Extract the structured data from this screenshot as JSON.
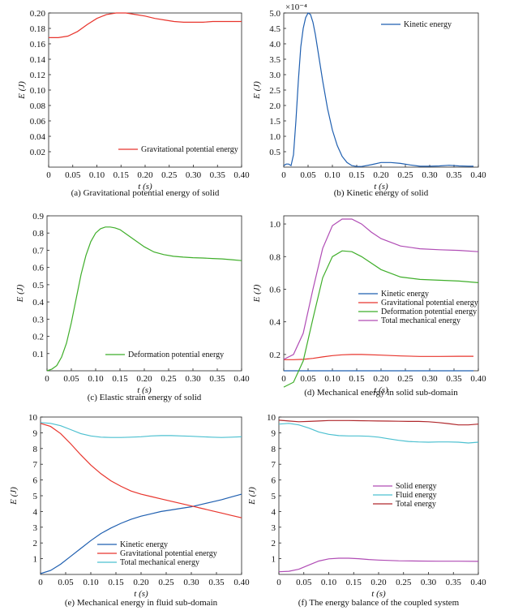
{
  "figure_title": "",
  "chart_data": [
    {
      "id": "a",
      "type": "line",
      "caption": "(a) Gravitational potential energy of solid",
      "xlabel": "t (s)",
      "ylabel": "E (J)",
      "xlim": [
        0,
        0.4
      ],
      "ylim": [
        0,
        0.2
      ],
      "xticks": [
        0,
        0.05,
        0.1,
        0.15,
        0.2,
        0.25,
        0.3,
        0.35,
        0.4
      ],
      "xtick_labels": [
        "0",
        "0.05",
        "0.10",
        "0.15",
        "0.20",
        "0.25",
        "0.30",
        "0.35",
        "0.40"
      ],
      "yticks": [
        0.02,
        0.04,
        0.06,
        0.08,
        0.1,
        0.12,
        0.14,
        0.16,
        0.18,
        0.2
      ],
      "ytick_labels": [
        "0.02",
        "0.04",
        "0.06",
        "0.08",
        "0.10",
        "0.12",
        "0.14",
        "0.16",
        "0.18",
        "0.20"
      ],
      "legend_position": "bottom-right",
      "series": [
        {
          "name": "Gravitational potential energy",
          "color": "#e8352d",
          "x": [
            0,
            0.02,
            0.04,
            0.06,
            0.08,
            0.1,
            0.12,
            0.14,
            0.15,
            0.16,
            0.18,
            0.2,
            0.22,
            0.24,
            0.26,
            0.28,
            0.3,
            0.32,
            0.34,
            0.36,
            0.38,
            0.4
          ],
          "y": [
            0.168,
            0.168,
            0.17,
            0.176,
            0.185,
            0.193,
            0.198,
            0.2,
            0.2,
            0.2,
            0.198,
            0.196,
            0.193,
            0.191,
            0.189,
            0.188,
            0.188,
            0.188,
            0.189,
            0.189,
            0.189,
            0.189
          ]
        }
      ]
    },
    {
      "id": "b",
      "type": "line",
      "caption": "(b) Kinetic energy of solid",
      "xlabel": "t (s)",
      "ylabel": "E (J)",
      "scale_label": "×10⁻⁴",
      "xlim": [
        0,
        0.4
      ],
      "ylim": [
        0,
        5.0
      ],
      "xticks": [
        0,
        0.05,
        0.1,
        0.15,
        0.2,
        0.25,
        0.3,
        0.35,
        0.4
      ],
      "xtick_labels": [
        "0",
        "0.05",
        "0.10",
        "0.15",
        "0.20",
        "0.25",
        "0.30",
        "0.35",
        "0.40"
      ],
      "yticks": [
        0.5,
        1.0,
        1.5,
        2.0,
        2.5,
        3.0,
        3.5,
        4.0,
        4.5,
        5.0
      ],
      "ytick_labels": [
        "0.5",
        "1.0",
        "1.5",
        "2.0",
        "2.5",
        "3.0",
        "3.5",
        "4.0",
        "4.5",
        "5.0"
      ],
      "legend_position": "top-right",
      "series": [
        {
          "name": "Kinetic energy",
          "color": "#1f5fb0",
          "x": [
            0,
            0.005,
            0.01,
            0.015,
            0.02,
            0.025,
            0.03,
            0.035,
            0.04,
            0.045,
            0.05,
            0.055,
            0.06,
            0.065,
            0.07,
            0.075,
            0.08,
            0.09,
            0.1,
            0.11,
            0.12,
            0.13,
            0.14,
            0.15,
            0.16,
            0.18,
            0.2,
            0.22,
            0.24,
            0.26,
            0.28,
            0.3,
            0.32,
            0.34,
            0.36,
            0.38,
            0.39
          ],
          "y": [
            0.05,
            0.1,
            0.1,
            0.05,
            0.4,
            1.5,
            2.8,
            3.9,
            4.5,
            4.85,
            5.0,
            4.95,
            4.7,
            4.3,
            3.8,
            3.3,
            2.8,
            1.9,
            1.2,
            0.7,
            0.35,
            0.15,
            0.05,
            0.02,
            0.02,
            0.08,
            0.15,
            0.15,
            0.12,
            0.07,
            0.03,
            0.03,
            0.04,
            0.06,
            0.04,
            0.03,
            0.03
          ]
        }
      ]
    },
    {
      "id": "c",
      "type": "line",
      "caption": "(c) Elastic strain energy of solid",
      "xlabel": "t (s)",
      "ylabel": "E (J)",
      "xlim": [
        0,
        0.4
      ],
      "ylim": [
        0,
        0.9
      ],
      "xticks": [
        0,
        0.05,
        0.1,
        0.15,
        0.2,
        0.25,
        0.3,
        0.35,
        0.4
      ],
      "xtick_labels": [
        "0",
        "0.05",
        "0.10",
        "0.15",
        "0.20",
        "0.25",
        "0.30",
        "0.35",
        "0.40"
      ],
      "yticks": [
        0.1,
        0.2,
        0.3,
        0.4,
        0.5,
        0.6,
        0.7,
        0.8,
        0.9
      ],
      "ytick_labels": [
        "0.1",
        "0.2",
        "0.3",
        "0.4",
        "0.5",
        "0.6",
        "0.7",
        "0.8",
        "0.9"
      ],
      "legend_position": "bottom-right",
      "series": [
        {
          "name": "Deformation potential energy",
          "color": "#3fae2a",
          "x": [
            0,
            0.01,
            0.02,
            0.03,
            0.04,
            0.05,
            0.06,
            0.07,
            0.08,
            0.09,
            0.1,
            0.11,
            0.12,
            0.13,
            0.14,
            0.15,
            0.16,
            0.18,
            0.2,
            0.22,
            0.24,
            0.26,
            0.28,
            0.3,
            0.32,
            0.34,
            0.36,
            0.38,
            0.4
          ],
          "y": [
            0,
            0.01,
            0.03,
            0.08,
            0.16,
            0.28,
            0.42,
            0.56,
            0.67,
            0.75,
            0.8,
            0.825,
            0.835,
            0.835,
            0.83,
            0.82,
            0.8,
            0.76,
            0.72,
            0.69,
            0.675,
            0.665,
            0.66,
            0.657,
            0.655,
            0.652,
            0.65,
            0.645,
            0.64
          ]
        }
      ]
    },
    {
      "id": "d",
      "type": "line",
      "caption": "(d) Mechanical energy in solid sub-domain",
      "xlabel": "t (s)",
      "ylabel": "E (J)",
      "xlim": [
        0,
        0.4
      ],
      "ylim": [
        0.1,
        1.05
      ],
      "xticks": [
        0,
        0.05,
        0.1,
        0.15,
        0.2,
        0.25,
        0.3,
        0.35,
        0.4
      ],
      "xtick_labels": [
        "0",
        "0.05",
        "0.10",
        "0.15",
        "0.20",
        "0.25",
        "0.30",
        "0.35",
        "0.40"
      ],
      "yticks": [
        0.2,
        0.4,
        0.6,
        0.8,
        1.0
      ],
      "ytick_labels": [
        "0.2",
        "0.4",
        "0.6",
        "0.8",
        "1.0"
      ],
      "legend_position": "lower-right",
      "series": [
        {
          "name": "Kinetic energy",
          "color": "#1f5fb0",
          "x": [
            0,
            0.05,
            0.1,
            0.15,
            0.2,
            0.25,
            0.3,
            0.35,
            0.39
          ],
          "y": [
            0.1,
            0.1,
            0.1,
            0.1,
            0.1,
            0.1,
            0.1,
            0.1,
            0.1
          ]
        },
        {
          "name": "Gravitational potential energy",
          "color": "#e8352d",
          "x": [
            0,
            0.02,
            0.04,
            0.06,
            0.08,
            0.1,
            0.12,
            0.14,
            0.16,
            0.2,
            0.24,
            0.28,
            0.32,
            0.36,
            0.39
          ],
          "y": [
            0.168,
            0.168,
            0.17,
            0.176,
            0.185,
            0.193,
            0.198,
            0.2,
            0.2,
            0.196,
            0.191,
            0.188,
            0.188,
            0.189,
            0.189
          ]
        },
        {
          "name": "Deformation potential energy",
          "color": "#3fae2a",
          "x": [
            0,
            0.02,
            0.04,
            0.06,
            0.08,
            0.1,
            0.12,
            0.14,
            0.16,
            0.2,
            0.24,
            0.28,
            0.32,
            0.36,
            0.4
          ],
          "y": [
            0.0,
            0.03,
            0.16,
            0.42,
            0.67,
            0.8,
            0.835,
            0.83,
            0.8,
            0.72,
            0.675,
            0.66,
            0.655,
            0.65,
            0.64
          ]
        },
        {
          "name": "Total mechanical energy",
          "color": "#b04cb5",
          "x": [
            0,
            0.02,
            0.04,
            0.06,
            0.08,
            0.1,
            0.12,
            0.14,
            0.16,
            0.18,
            0.2,
            0.24,
            0.28,
            0.32,
            0.36,
            0.4
          ],
          "y": [
            0.17,
            0.2,
            0.33,
            0.6,
            0.85,
            0.99,
            1.03,
            1.03,
            1.0,
            0.95,
            0.91,
            0.865,
            0.848,
            0.842,
            0.838,
            0.83
          ]
        }
      ]
    },
    {
      "id": "e",
      "type": "line",
      "caption": "(e) Mechanical energy in fluid sub-domain",
      "xlabel": "t (s)",
      "ylabel": "E (J)",
      "xlim": [
        0,
        0.4
      ],
      "ylim": [
        0,
        10
      ],
      "xticks": [
        0,
        0.05,
        0.1,
        0.15,
        0.2,
        0.25,
        0.3,
        0.35,
        0.4
      ],
      "xtick_labels": [
        "0",
        "0.05",
        "0.10",
        "0.15",
        "0.20",
        "0.25",
        "0.30",
        "0.35",
        "0.40"
      ],
      "yticks": [
        1,
        2,
        3,
        4,
        5,
        6,
        7,
        8,
        9,
        10
      ],
      "ytick_labels": [
        "1",
        "2",
        "3",
        "4",
        "5",
        "6",
        "7",
        "8",
        "9",
        "10"
      ],
      "legend_position": "bottom-right",
      "series": [
        {
          "name": "Kinetic energy",
          "color": "#1f5fb0",
          "x": [
            0,
            0.02,
            0.04,
            0.06,
            0.08,
            0.1,
            0.12,
            0.14,
            0.16,
            0.18,
            0.2,
            0.22,
            0.24,
            0.26,
            0.28,
            0.3,
            0.32,
            0.34,
            0.36,
            0.38,
            0.4
          ],
          "y": [
            0.05,
            0.25,
            0.65,
            1.15,
            1.65,
            2.15,
            2.6,
            2.95,
            3.25,
            3.5,
            3.7,
            3.85,
            4.0,
            4.1,
            4.2,
            4.3,
            4.45,
            4.6,
            4.75,
            4.93,
            5.1
          ]
        },
        {
          "name": "Gravitational potential energy",
          "color": "#e8352d",
          "x": [
            0,
            0.02,
            0.04,
            0.06,
            0.08,
            0.1,
            0.12,
            0.14,
            0.16,
            0.18,
            0.2,
            0.22,
            0.24,
            0.26,
            0.28,
            0.3,
            0.32,
            0.34,
            0.36,
            0.38,
            0.4
          ],
          "y": [
            9.6,
            9.4,
            8.95,
            8.3,
            7.6,
            6.95,
            6.4,
            5.95,
            5.6,
            5.3,
            5.1,
            4.95,
            4.8,
            4.65,
            4.5,
            4.35,
            4.2,
            4.05,
            3.9,
            3.75,
            3.6
          ]
        },
        {
          "name": "Total mechanical energy",
          "color": "#4cc0d0",
          "x": [
            0,
            0.02,
            0.04,
            0.06,
            0.08,
            0.1,
            0.12,
            0.14,
            0.16,
            0.18,
            0.2,
            0.22,
            0.24,
            0.26,
            0.28,
            0.3,
            0.32,
            0.34,
            0.36,
            0.38,
            0.4
          ],
          "y": [
            9.65,
            9.6,
            9.45,
            9.2,
            8.95,
            8.8,
            8.72,
            8.7,
            8.7,
            8.72,
            8.75,
            8.8,
            8.82,
            8.82,
            8.8,
            8.78,
            8.75,
            8.72,
            8.7,
            8.72,
            8.75
          ]
        }
      ]
    },
    {
      "id": "f",
      "type": "line",
      "caption": "(f) The energy balance of the coupled system",
      "xlabel": "t (s)",
      "ylabel": "E (J)",
      "xlim": [
        0,
        0.4
      ],
      "ylim": [
        0,
        10
      ],
      "xticks": [
        0,
        0.05,
        0.1,
        0.15,
        0.2,
        0.25,
        0.3,
        0.35,
        0.4
      ],
      "xtick_labels": [
        "0",
        "0.05",
        "0.10",
        "0.15",
        "0.20",
        "0.25",
        "0.30",
        "0.35",
        "0.40"
      ],
      "yticks": [
        1,
        2,
        3,
        4,
        5,
        6,
        7,
        8,
        9,
        10
      ],
      "ytick_labels": [
        "1",
        "2",
        "3",
        "4",
        "5",
        "6",
        "7",
        "8",
        "9",
        "10"
      ],
      "legend_position": "right",
      "series": [
        {
          "name": "Solid energy",
          "color": "#b04cb5",
          "x": [
            0,
            0.02,
            0.04,
            0.06,
            0.08,
            0.1,
            0.12,
            0.14,
            0.16,
            0.18,
            0.2,
            0.24,
            0.28,
            0.32,
            0.36,
            0.4
          ],
          "y": [
            0.17,
            0.2,
            0.33,
            0.6,
            0.85,
            0.99,
            1.03,
            1.03,
            1.0,
            0.95,
            0.91,
            0.865,
            0.848,
            0.842,
            0.838,
            0.83
          ]
        },
        {
          "name": "Fluid energy",
          "color": "#4cc0d0",
          "x": [
            0,
            0.02,
            0.04,
            0.06,
            0.08,
            0.1,
            0.12,
            0.14,
            0.16,
            0.18,
            0.2,
            0.22,
            0.24,
            0.26,
            0.28,
            0.3,
            0.32,
            0.34,
            0.36,
            0.38,
            0.4
          ],
          "y": [
            9.55,
            9.6,
            9.5,
            9.3,
            9.05,
            8.9,
            8.82,
            8.8,
            8.8,
            8.78,
            8.72,
            8.62,
            8.52,
            8.45,
            8.42,
            8.4,
            8.42,
            8.42,
            8.4,
            8.35,
            8.4
          ]
        },
        {
          "name": "Total energy",
          "color": "#b0282c",
          "x": [
            0,
            0.02,
            0.04,
            0.06,
            0.08,
            0.1,
            0.12,
            0.14,
            0.16,
            0.18,
            0.2,
            0.22,
            0.24,
            0.26,
            0.28,
            0.3,
            0.32,
            0.34,
            0.36,
            0.38,
            0.4
          ],
          "y": [
            9.8,
            9.75,
            9.7,
            9.72,
            9.75,
            9.78,
            9.78,
            9.78,
            9.77,
            9.76,
            9.75,
            9.74,
            9.73,
            9.72,
            9.72,
            9.7,
            9.65,
            9.58,
            9.5,
            9.5,
            9.55
          ]
        }
      ]
    }
  ]
}
